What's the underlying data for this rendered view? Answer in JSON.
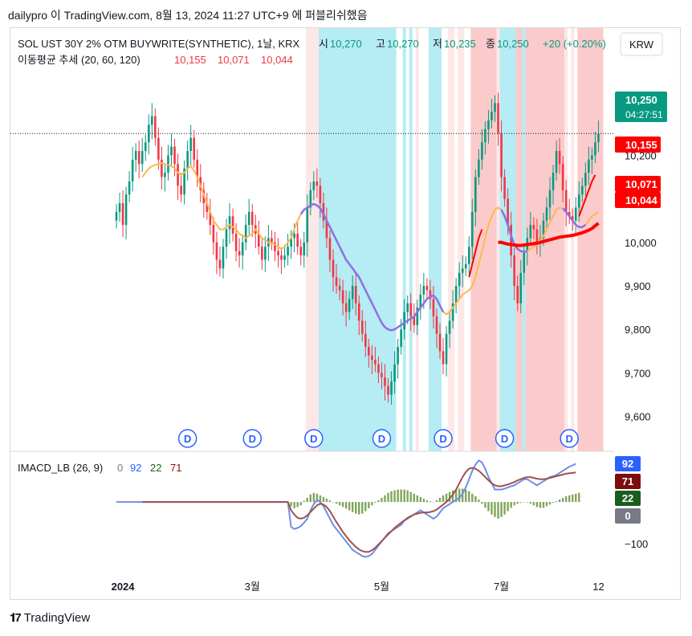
{
  "header": {
    "publish_line": "dailypro 이 TradingView.com, 8월 13, 2024 11:27 UTC+9 에 퍼블리쉬했음"
  },
  "legend": {
    "symbol": "SOL UST 30Y 2% OTM BUYWRITE(SYNTHETIC), 1날, KRX",
    "o_label": "시",
    "o_value": "10,270",
    "h_label": "고",
    "h_value": "10,270",
    "l_label": "저",
    "l_value": "10,235",
    "c_label": "종",
    "c_value": "10,250",
    "change": "+20 (+0.20%)",
    "ma_label": "이동평균 추세 (20, 60, 120)",
    "ma_values": [
      "10,155",
      "10,071",
      "10,044"
    ],
    "currency": "KRW"
  },
  "price_labels": {
    "last": "10,250",
    "countdown": "04:27:51",
    "ma20": "10,155",
    "ma60": "10,071",
    "ma120": "10,044"
  },
  "macd_legend": {
    "name": "IMACD_LB (26, 9)",
    "values": [
      "0",
      "92",
      "22",
      "71"
    ]
  },
  "macd_labels": [
    "92",
    "71",
    "22",
    "0"
  ],
  "dividend_marker": "D",
  "footer": {
    "brand": "TradingView"
  },
  "colors": {
    "up": "#089981",
    "down": "#f23645",
    "ma20": "#ff0000",
    "ma60_bull": "#ffb74d",
    "ma60_bear": "#8d6fe6",
    "band_red": "#fbc5c5",
    "band_cyan": "#b2ebf2",
    "macd_line": "#6d8ee6",
    "signal_line": "#a0524d",
    "hist": "#7fa65b"
  },
  "chart_data": [
    {
      "type": "candlestick",
      "title": "SOL UST 30Y 2% OTM BUYWRITE(SYNTHETIC), 1날, KRX",
      "ylim": [
        9520,
        10400
      ],
      "y_ticks": [
        9600,
        9700,
        9800,
        9900,
        10000,
        10100,
        10200,
        10300
      ],
      "x_ticks": [
        {
          "label": "2024",
          "bar": 2
        },
        {
          "label": "3월",
          "bar": 42
        },
        {
          "label": "5월",
          "bar": 82
        },
        {
          "label": "7월",
          "bar": 119
        },
        {
          "label": "12",
          "bar": 149
        }
      ],
      "dividend_bars": [
        22,
        42,
        61,
        82,
        101,
        120,
        140
      ],
      "bands": [
        {
          "from": 59,
          "to": 62,
          "color": "lightred"
        },
        {
          "from": 63,
          "to": 86,
          "color": "cyan"
        },
        {
          "from": 89,
          "to": 89,
          "color": "cyan"
        },
        {
          "from": 91,
          "to": 91,
          "color": "cyan"
        },
        {
          "from": 93,
          "to": 93,
          "color": "lightred"
        },
        {
          "from": 97,
          "to": 100,
          "color": "cyan"
        },
        {
          "from": 103,
          "to": 104,
          "color": "lightred"
        },
        {
          "from": 106,
          "to": 107,
          "color": "lightred"
        },
        {
          "from": 110,
          "to": 117,
          "color": "red"
        },
        {
          "from": 118,
          "to": 118,
          "color": "lightred"
        },
        {
          "from": 119,
          "to": 123,
          "color": "cyan"
        },
        {
          "from": 124,
          "to": 125,
          "color": "red"
        },
        {
          "from": 126,
          "to": 126,
          "color": "cyan"
        },
        {
          "from": 127,
          "to": 138,
          "color": "red"
        },
        {
          "from": 139,
          "to": 139,
          "color": "lightred"
        },
        {
          "from": 141,
          "to": 141,
          "color": "lightred"
        },
        {
          "from": 143,
          "to": 150,
          "color": "red"
        }
      ],
      "close": [
        10070,
        10090,
        10040,
        10110,
        10140,
        10190,
        10210,
        10180,
        10210,
        10230,
        10270,
        10290,
        10240,
        10190,
        10150,
        10160,
        10200,
        10220,
        10180,
        10130,
        10110,
        10170,
        10210,
        10240,
        10190,
        10150,
        10120,
        10090,
        10070,
        10040,
        10000,
        9960,
        9940,
        9990,
        10030,
        10060,
        10020,
        9980,
        9970,
        10000,
        10040,
        10070,
        10040,
        10020,
        9990,
        9960,
        9990,
        10010,
        10000,
        9980,
        9970,
        9960,
        9970,
        9990,
        10010,
        10020,
        9990,
        9970,
        10000,
        10080,
        10120,
        10140,
        10130,
        10090,
        10050,
        10010,
        9960,
        9920,
        9900,
        9890,
        9860,
        9840,
        9870,
        9900,
        9860,
        9820,
        9790,
        9760,
        9740,
        9730,
        9720,
        9700,
        9690,
        9670,
        9650,
        9680,
        9720,
        9760,
        9800,
        9840,
        9860,
        9830,
        9810,
        9850,
        9880,
        9900,
        9890,
        9870,
        9830,
        9790,
        9750,
        9720,
        9790,
        9820,
        9860,
        9900,
        9930,
        9940,
        9950,
        9990,
        10070,
        10150,
        10190,
        10230,
        10260,
        10280,
        10300,
        10320,
        10250,
        10150,
        10100,
        10040,
        9970,
        9900,
        9860,
        9930,
        9980,
        10010,
        10040,
        10030,
        10000,
        10010,
        10050,
        10080,
        10120,
        10160,
        10210,
        10180,
        10120,
        10070,
        10060,
        10050,
        10080,
        10110,
        10130,
        10160,
        10190,
        10200,
        10230,
        10250
      ],
      "ma20": [
        null,
        null,
        null,
        null,
        null,
        null,
        null,
        null,
        null,
        null,
        null,
        null,
        null,
        null,
        null,
        null,
        null,
        null,
        null,
        null,
        null,
        null,
        null,
        null,
        null,
        null,
        null,
        null,
        null,
        null,
        null,
        null,
        null,
        null,
        null,
        null,
        null,
        null,
        null,
        null,
        null,
        null,
        null,
        null,
        null,
        null,
        null,
        null,
        null,
        null,
        null,
        null,
        null,
        null,
        null,
        null,
        null,
        null,
        null,
        null,
        null,
        null,
        null,
        null,
        null,
        null,
        null,
        null,
        null,
        null,
        null,
        null,
        null,
        null,
        null,
        null,
        null,
        null,
        null,
        null,
        null,
        null,
        null,
        null,
        null,
        null,
        null,
        null,
        null,
        null,
        null,
        null,
        null,
        null,
        null,
        null,
        null,
        null,
        null,
        null,
        null,
        null,
        null,
        null,
        null,
        null,
        null,
        null,
        null,
        9920,
        9950,
        9980,
        10010,
        10030,
        null,
        null,
        null,
        null,
        null,
        null,
        null,
        null,
        null,
        null,
        null,
        null,
        null,
        null,
        null,
        null,
        null,
        null,
        null,
        null,
        null,
        null,
        null,
        null,
        null,
        null,
        null,
        null,
        null,
        10060,
        10080,
        10100,
        10120,
        10140,
        10155
      ],
      "ma60": [
        null,
        null,
        null,
        null,
        null,
        null,
        null,
        null,
        10150,
        10160,
        10170,
        10175,
        10178,
        10180,
        10182,
        10180,
        10178,
        10175,
        10170,
        10160,
        10155,
        10160,
        10170,
        10175,
        10165,
        10150,
        10130,
        10110,
        10090,
        10070,
        10050,
        10040,
        10030,
        10030,
        10035,
        10040,
        10035,
        10030,
        10020,
        10015,
        10010,
        10015,
        10020,
        10030,
        10020,
        10010,
        10005,
        10000,
        9998,
        9995,
        9990,
        9985,
        9990,
        10000,
        10010,
        10030,
        10050,
        10065,
        10075,
        10080,
        10085,
        10088,
        10085,
        10078,
        10065,
        10050,
        10035,
        10020,
        10005,
        9990,
        9975,
        9960,
        9950,
        9940,
        9930,
        9920,
        9905,
        9890,
        9875,
        9860,
        9845,
        9830,
        9815,
        9805,
        9800,
        9798,
        9800,
        9805,
        9810,
        9815,
        9820,
        9825,
        9830,
        9840,
        9850,
        9860,
        9870,
        9875,
        9878,
        9870,
        9855,
        9840,
        9835,
        9840,
        9850,
        9860,
        9870,
        9880,
        9885,
        9890,
        9900,
        9920,
        9950,
        9980,
        10010,
        10040,
        10060,
        10075,
        10080,
        10075,
        10060,
        10040,
        10015,
        9995,
        9985,
        9980,
        9978,
        9980,
        9985,
        9990,
        9995,
        10005,
        10015,
        10030,
        10045,
        10060,
        10075,
        10080,
        10078,
        10070,
        10060,
        10050,
        10040,
        10035,
        10035,
        10040,
        10050,
        10060,
        10065,
        10071
      ],
      "ma60_bearish_ranges": [
        [
          57,
          101
        ],
        [
          119,
          127
        ],
        [
          138,
          145
        ]
      ],
      "ma120": [
        null,
        null,
        null,
        null,
        null,
        null,
        null,
        null,
        null,
        null,
        null,
        null,
        null,
        null,
        null,
        null,
        null,
        null,
        null,
        null,
        null,
        null,
        null,
        null,
        null,
        null,
        null,
        null,
        null,
        null,
        null,
        null,
        null,
        null,
        null,
        null,
        null,
        null,
        null,
        null,
        null,
        null,
        null,
        null,
        null,
        null,
        null,
        null,
        null,
        null,
        null,
        null,
        null,
        null,
        null,
        null,
        null,
        null,
        null,
        null,
        null,
        null,
        null,
        null,
        null,
        null,
        null,
        null,
        null,
        null,
        null,
        null,
        null,
        null,
        null,
        null,
        null,
        null,
        null,
        null,
        null,
        null,
        null,
        null,
        null,
        null,
        null,
        null,
        null,
        null,
        null,
        null,
        null,
        null,
        null,
        null,
        null,
        null,
        null,
        null,
        null,
        null,
        null,
        null,
        null,
        null,
        null,
        null,
        null,
        null,
        null,
        null,
        null,
        null,
        null,
        null,
        null,
        null,
        10000,
        10000,
        9998,
        9996,
        9995,
        9994,
        9993,
        9993,
        9994,
        9995,
        9996,
        9997,
        9998,
        10000,
        10002,
        10004,
        10006,
        10008,
        10010,
        10012,
        10013,
        10014,
        10015,
        10016,
        10018,
        10020,
        10022,
        10025,
        10028,
        10032,
        10038,
        10044
      ]
    },
    {
      "type": "line",
      "title": "IMACD_LB (26, 9)",
      "ylim": [
        -160,
        120
      ],
      "y_ticks": [
        -100
      ],
      "zero_level": 0,
      "macd": [
        0,
        0,
        0,
        0,
        0,
        0,
        0,
        0,
        0,
        0,
        0,
        0,
        0,
        0,
        0,
        0,
        0,
        0,
        0,
        0,
        0,
        0,
        0,
        0,
        0,
        0,
        0,
        0,
        0,
        0,
        0,
        0,
        0,
        0,
        0,
        0,
        0,
        0,
        0,
        0,
        0,
        0,
        0,
        0,
        0,
        0,
        0,
        0,
        0,
        0,
        0,
        0,
        0,
        0,
        -60,
        -65,
        -62,
        -58,
        -50,
        -40,
        -20,
        -5,
        5,
        0,
        -10,
        -25,
        -40,
        -55,
        -65,
        -75,
        -85,
        -95,
        -105,
        -115,
        -120,
        -125,
        -130,
        -132,
        -130,
        -125,
        -115,
        -105,
        -95,
        -85,
        -75,
        -70,
        -65,
        -60,
        -55,
        -45,
        -40,
        -35,
        -30,
        -25,
        -20,
        -25,
        -30,
        -35,
        -40,
        -35,
        -25,
        -15,
        -10,
        -5,
        0,
        5,
        10,
        20,
        35,
        55,
        75,
        90,
        100,
        95,
        80,
        60,
        45,
        30,
        30,
        30,
        32,
        35,
        38,
        40,
        45,
        50,
        55,
        55,
        50,
        45,
        40,
        45,
        50,
        55,
        60,
        62,
        65,
        70,
        75,
        80,
        85,
        88,
        92
      ],
      "signal": [
        0,
        0,
        0,
        0,
        0,
        0,
        0,
        0,
        0,
        0,
        0,
        0,
        0,
        0,
        0,
        0,
        0,
        0,
        0,
        0,
        0,
        0,
        0,
        0,
        0,
        0,
        0,
        0,
        0,
        0,
        0,
        0,
        0,
        0,
        0,
        0,
        0,
        0,
        0,
        0,
        0,
        0,
        0,
        0,
        0,
        0,
        0,
        0,
        0,
        0,
        0,
        0,
        0,
        0,
        -20,
        -30,
        -38,
        -40,
        -38,
        -32,
        -24,
        -16,
        -8,
        -4,
        -6,
        -12,
        -22,
        -35,
        -48,
        -60,
        -72,
        -82,
        -92,
        -100,
        -108,
        -114,
        -118,
        -120,
        -120,
        -116,
        -110,
        -102,
        -94,
        -86,
        -78,
        -70,
        -62,
        -56,
        -50,
        -44,
        -38,
        -34,
        -30,
        -28,
        -26,
        -25,
        -25,
        -24,
        -22,
        -18,
        -12,
        -6,
        0,
        8,
        18,
        30,
        45,
        60,
        72,
        80,
        82,
        80,
        75,
        68,
        60,
        52,
        45,
        40,
        38,
        38,
        40,
        42,
        45,
        48,
        52,
        55,
        58,
        60,
        60,
        58,
        56,
        55,
        55,
        56,
        58,
        60,
        62,
        64,
        66,
        68,
        69,
        70,
        71
      ],
      "histogram": [
        0,
        0,
        0,
        0,
        0,
        0,
        0,
        0,
        0,
        0,
        0,
        0,
        0,
        0,
        0,
        0,
        0,
        0,
        0,
        0,
        0,
        0,
        0,
        0,
        0,
        0,
        0,
        0,
        0,
        0,
        0,
        0,
        0,
        0,
        0,
        0,
        0,
        0,
        0,
        0,
        0,
        0,
        0,
        0,
        0,
        0,
        0,
        0,
        0,
        0,
        0,
        0,
        0,
        0,
        -10,
        -15,
        -12,
        -8,
        3,
        10,
        18,
        22,
        20,
        16,
        12,
        8,
        4,
        0,
        -4,
        -8,
        -12,
        -16,
        -20,
        -24,
        -28,
        -30,
        -28,
        -22,
        -15,
        -8,
        -2,
        4,
        10,
        16,
        22,
        26,
        28,
        30,
        30,
        30,
        28,
        24,
        20,
        16,
        12,
        8,
        4,
        2,
        0,
        4,
        10,
        16,
        20,
        24,
        28,
        30,
        32,
        32,
        30,
        26,
        20,
        14,
        6,
        -4,
        -14,
        -22,
        -30,
        -36,
        -40,
        -36,
        -30,
        -22,
        -14,
        -8,
        -4,
        -2,
        0,
        0,
        -4,
        -8,
        -12,
        -14,
        -14,
        -10,
        -6,
        -2,
        2,
        6,
        10,
        14,
        16,
        18,
        20,
        22
      ],
      "hist_labels": {
        "last": "22"
      }
    }
  ]
}
